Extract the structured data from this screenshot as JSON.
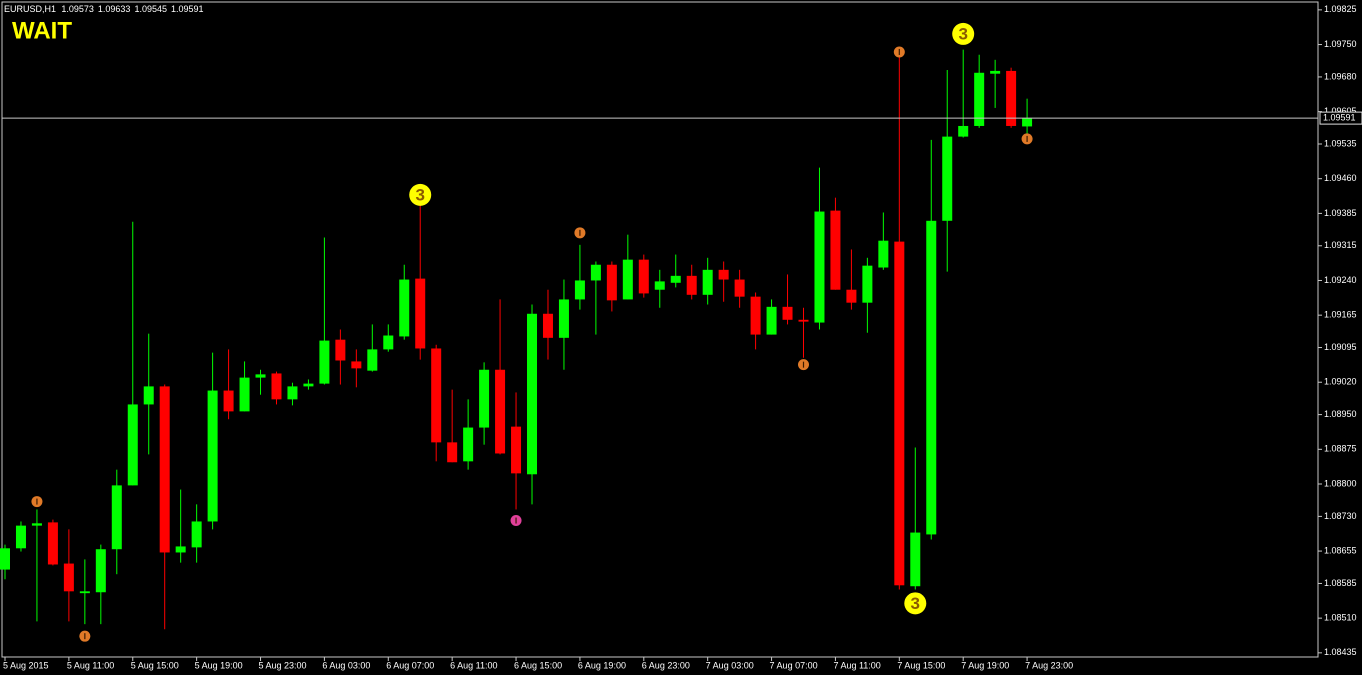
{
  "chart_data": {
    "type": "candlestick",
    "symbol": "EURUSD,H1",
    "status": "WAIT",
    "categories": [
      "5 Aug 2015",
      null,
      null,
      null,
      "5 Aug 11:00",
      null,
      null,
      null,
      "5 Aug 15:00",
      null,
      null,
      null,
      "5 Aug 19:00",
      null,
      null,
      null,
      "5 Aug 23:00",
      null,
      null,
      null,
      "6 Aug 03:00",
      null,
      null,
      null,
      "6 Aug 07:00",
      null,
      null,
      null,
      "6 Aug 11:00",
      null,
      null,
      null,
      "6 Aug 15:00",
      null,
      null,
      null,
      "6 Aug 19:00",
      null,
      null,
      null,
      "6 Aug 23:00",
      null,
      null,
      null,
      "7 Aug 03:00",
      null,
      null,
      null,
      "7 Aug 07:00",
      null,
      null,
      null,
      "7 Aug 11:00",
      null,
      null,
      null,
      "7 Aug 15:00",
      null,
      null,
      null,
      "7 Aug 19:00",
      null,
      null,
      null,
      "7 Aug 23:00"
    ],
    "open": [
      1.08615,
      1.08661,
      1.0871,
      1.08717,
      1.08628,
      1.08564,
      1.08566,
      1.08659,
      1.08797,
      1.08972,
      1.09011,
      1.08652,
      1.08663,
      1.08719,
      1.09002,
      1.08957,
      1.0903,
      1.09039,
      1.08983,
      1.09011,
      1.09017,
      1.09112,
      1.09065,
      1.09045,
      1.09091,
      1.09119,
      1.09244,
      1.09093,
      1.0889,
      1.08849,
      1.08922,
      1.09047,
      1.08924,
      1.08821,
      1.09168,
      1.09116,
      1.09199,
      1.0924,
      1.09274,
      1.09199,
      1.09285,
      1.0922,
      1.09235,
      1.0925,
      1.09209,
      1.09263,
      1.09242,
      1.09205,
      1.09123,
      1.09183,
      1.09155,
      1.09149,
      1.09391,
      1.0922,
      1.09192,
      1.09268,
      1.09324,
      1.08579,
      1.08691,
      1.09369,
      1.09551,
      1.09574,
      1.09687,
      1.09693,
      1.09573
    ],
    "high": [
      1.08669,
      1.08719,
      1.08745,
      1.08723,
      1.08702,
      1.08637,
      1.08669,
      1.08831,
      1.09367,
      1.09125,
      1.09015,
      1.08788,
      1.08756,
      1.09084,
      1.09091,
      1.09065,
      1.09047,
      1.09043,
      1.09019,
      1.09026,
      1.09333,
      1.09134,
      1.09091,
      1.09145,
      1.09145,
      1.09274,
      1.09404,
      1.09101,
      1.09004,
      1.08983,
      1.09063,
      1.09199,
      1.08998,
      1.09188,
      1.0922,
      1.09242,
      1.09317,
      1.09281,
      1.09281,
      1.09339,
      1.09296,
      1.09263,
      1.09296,
      1.09274,
      1.09289,
      1.09281,
      1.09263,
      1.09214,
      1.09199,
      1.09253,
      1.09181,
      1.09484,
      1.09419,
      1.09307,
      1.09289,
      1.09387,
      1.09739,
      1.08879,
      1.09544,
      1.09695,
      1.09739,
      1.09728,
      1.09717,
      1.097,
      1.09633
    ],
    "low": [
      1.08594,
      1.08654,
      1.08503,
      1.08624,
      1.08503,
      1.08497,
      1.08497,
      1.08605,
      1.08797,
      1.08864,
      1.08486,
      1.0863,
      1.0863,
      1.08702,
      1.0894,
      1.08957,
      1.08993,
      1.08972,
      1.0897,
      1.09004,
      1.09015,
      1.09015,
      1.09009,
      1.09043,
      1.09086,
      1.09112,
      1.09069,
      1.08849,
      1.08847,
      1.08831,
      1.08885,
      1.08864,
      1.08745,
      1.08756,
      1.09069,
      1.09047,
      1.09177,
      1.09123,
      1.09173,
      1.09199,
      1.09203,
      1.09181,
      1.09225,
      1.09199,
      1.09188,
      1.09194,
      1.09181,
      1.09091,
      1.09123,
      1.09145,
      1.09073,
      1.09134,
      1.0922,
      1.09177,
      1.09127,
      1.09263,
      1.08572,
      1.08572,
      1.0868,
      1.09259,
      1.09549,
      1.0957,
      1.09613,
      1.0957,
      1.09545
    ],
    "close": [
      1.08661,
      1.0871,
      1.08715,
      1.08626,
      1.08568,
      1.08568,
      1.08659,
      1.08797,
      1.08972,
      1.09011,
      1.08652,
      1.08665,
      1.08719,
      1.09002,
      1.08957,
      1.0903,
      1.09037,
      1.08983,
      1.09011,
      1.09017,
      1.0911,
      1.09067,
      1.0905,
      1.09091,
      1.09121,
      1.09242,
      1.09093,
      1.0889,
      1.08847,
      1.08922,
      1.09047,
      1.08866,
      1.08823,
      1.09168,
      1.09116,
      1.09199,
      1.0924,
      1.09274,
      1.09197,
      1.09285,
      1.09212,
      1.09238,
      1.0925,
      1.09209,
      1.09263,
      1.09242,
      1.09205,
      1.09123,
      1.09183,
      1.09155,
      1.09151,
      1.09389,
      1.0922,
      1.09192,
      1.09272,
      1.09326,
      1.08581,
      1.08695,
      1.09369,
      1.09551,
      1.09574,
      1.09689,
      1.09693,
      1.09574,
      1.09591
    ],
    "up_color": "#00ff00",
    "down_color": "#ff0000",
    "price_line": true,
    "ylim": [
      1.08426,
      1.09842
    ],
    "yticks": [
      1.09825,
      {
        "value": 1.0975,
        "label": "1.09750"
      },
      {
        "value": 1.0968,
        "label": "1.09680"
      },
      1.09605,
      1.09535,
      {
        "value": 1.0946,
        "label": "1.09460"
      },
      1.09385,
      1.09315,
      {
        "value": 1.0924,
        "label": "1.09240"
      },
      1.09165,
      1.09095,
      {
        "value": 1.0902,
        "label": "1.09020"
      },
      {
        "value": 1.0895,
        "label": "1.08950"
      },
      1.08875,
      {
        "value": 1.088,
        "label": "1.08800"
      },
      {
        "value": 1.0873,
        "label": "1.08730"
      },
      1.08655,
      1.08585,
      {
        "value": 1.0851,
        "label": "1.08510"
      },
      1.08435
    ],
    "markers": [
      {
        "index": 2,
        "price": 1.08762,
        "color": "#e07a28"
      },
      {
        "index": 5,
        "price": 1.08471,
        "color": "#e07a28"
      },
      {
        "index": 36,
        "price": 1.09343,
        "color": "#e07a28"
      },
      {
        "index": 50,
        "price": 1.09058,
        "color": "#e07a28"
      },
      {
        "index": 56,
        "price": 1.09734,
        "color": "#e07a28"
      },
      {
        "index": 64,
        "price": 1.09546,
        "color": "#e07a28"
      },
      {
        "index": 32,
        "price": 1.08721,
        "color": "#e0409a"
      }
    ],
    "counts": [
      {
        "index": 26,
        "price": 1.09425,
        "text": "3"
      },
      {
        "index": 60,
        "price": 1.09773,
        "text": "3"
      },
      {
        "index": 57,
        "price": 1.08542,
        "text": "3"
      }
    ]
  }
}
